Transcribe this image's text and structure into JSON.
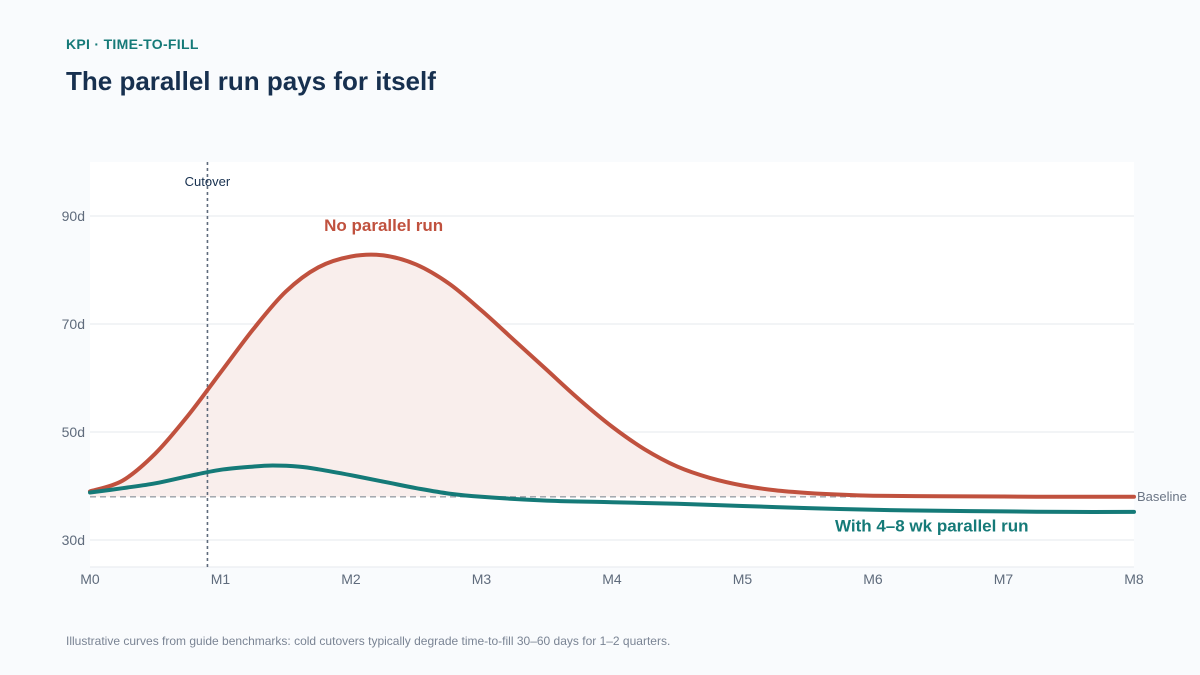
{
  "header": {
    "kicker": "KPI · TIME-TO-FILL",
    "title": "The parallel run pays for itself"
  },
  "footnote": "Illustrative curves from guide benchmarks: cold cutovers typically degrade time-to-fill 30–60 days for 1–2 quarters.",
  "colors": {
    "no_parallel": "#c0513e",
    "parallel": "#157a78",
    "fill": "#f9eeec",
    "baseline": "#9aa0a8",
    "grid": "#e6e9ee",
    "cutover": "#5f6b7c"
  },
  "chart_data": {
    "type": "line",
    "x_ticks": [
      "M0",
      "M1",
      "M2",
      "M3",
      "M4",
      "M5",
      "M6",
      "M7",
      "M8"
    ],
    "y_ticks": [
      30,
      50,
      70,
      90
    ],
    "y_tick_format": "{v}d",
    "xlim": [
      0,
      8
    ],
    "ylim": [
      25,
      100
    ],
    "grid": "horizontal",
    "annotations": {
      "cutover": {
        "label": "Cutover",
        "x": 0.9
      },
      "baseline": {
        "label": "Baseline",
        "y": 38
      }
    },
    "series": [
      {
        "name": "No parallel run",
        "x": [
          0,
          0.25,
          0.5,
          0.75,
          1.0,
          1.25,
          1.5,
          1.75,
          2.0,
          2.25,
          2.5,
          2.75,
          3.0,
          3.25,
          3.5,
          3.75,
          4.0,
          4.25,
          4.5,
          4.75,
          5.0,
          5.25,
          5.5,
          5.75,
          6.0,
          6.5,
          7.0,
          7.5,
          8.0
        ],
        "values": [
          39,
          41,
          46,
          53,
          61,
          69,
          76,
          80.5,
          82.5,
          82.7,
          81,
          77.5,
          72.5,
          67,
          61.5,
          56,
          51,
          46.8,
          43.6,
          41.5,
          40.1,
          39.2,
          38.7,
          38.4,
          38.2,
          38.1,
          38.05,
          38.0,
          38.0
        ]
      },
      {
        "name": "With 4–8 wk parallel run",
        "x": [
          0,
          0.25,
          0.5,
          0.75,
          1.0,
          1.25,
          1.4,
          1.6,
          1.75,
          2.0,
          2.25,
          2.5,
          2.75,
          3.0,
          3.5,
          4.0,
          4.5,
          5.0,
          5.5,
          6.0,
          6.5,
          7.0,
          7.5,
          8.0
        ],
        "values": [
          38.8,
          39.6,
          40.5,
          41.8,
          43,
          43.6,
          43.8,
          43.6,
          43.1,
          42,
          40.8,
          39.6,
          38.6,
          38,
          37.3,
          37,
          36.7,
          36.3,
          35.9,
          35.6,
          35.4,
          35.3,
          35.2,
          35.2
        ]
      }
    ]
  }
}
